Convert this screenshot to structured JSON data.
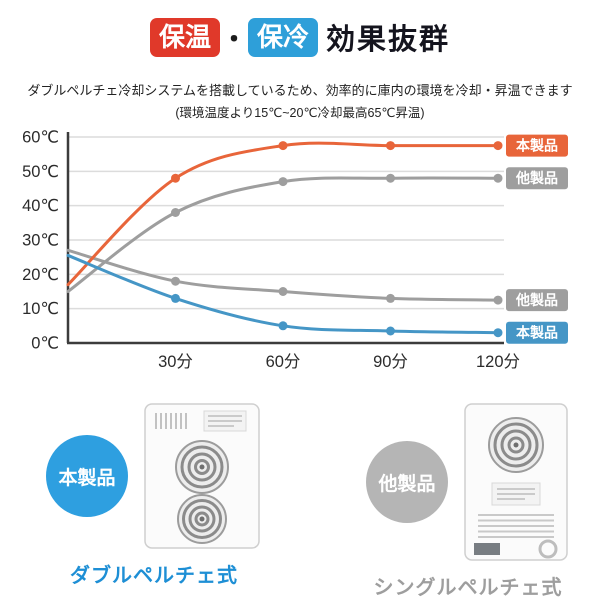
{
  "header": {
    "badge_hot": "保温",
    "separator": "・",
    "badge_cold": "保冷",
    "title_rest": "効果抜群",
    "subtitle_line1": "ダブルペルチェ冷却システムを搭載しているため、効率的に庫内の環境を冷却・昇温できます",
    "subtitle_line2": "(環境温度より15℃~20℃冷却最高65℃昇温)"
  },
  "chart_data": {
    "type": "line",
    "x": [
      0,
      30,
      60,
      90,
      120
    ],
    "xlim": [
      0,
      120
    ],
    "ylim": [
      0,
      60
    ],
    "x_ticks": [
      {
        "value": 30,
        "label": "30分"
      },
      {
        "value": 60,
        "label": "60分"
      },
      {
        "value": 90,
        "label": "90分"
      },
      {
        "value": 120,
        "label": "120分"
      }
    ],
    "y_ticks": [
      {
        "value": 0,
        "label": "0℃"
      },
      {
        "value": 10,
        "label": "10℃"
      },
      {
        "value": 20,
        "label": "20℃"
      },
      {
        "value": 30,
        "label": "30℃"
      },
      {
        "value": 40,
        "label": "40℃"
      },
      {
        "value": 50,
        "label": "50℃"
      },
      {
        "value": 60,
        "label": "60℃"
      }
    ],
    "grid": true,
    "legend_position": "right-edge-tags",
    "series": [
      {
        "name": "他製品(保温)",
        "tag": "他製品",
        "color": "#9e9e9e",
        "values": [
          15,
          38,
          47,
          48,
          48
        ]
      },
      {
        "name": "他製品(保冷)",
        "tag": "他製品",
        "color": "#9e9e9e",
        "values": [
          27,
          18,
          15,
          13,
          12.5
        ]
      },
      {
        "name": "本製品(保温)",
        "tag": "本製品",
        "color": "#e8653a",
        "values": [
          17,
          48,
          57.5,
          57.5,
          57.5
        ]
      },
      {
        "name": "本製品(保冷)",
        "tag": "本製品",
        "color": "#4596c6",
        "values": [
          25.5,
          13,
          5,
          3.5,
          3
        ]
      }
    ]
  },
  "bottom": {
    "ours": {
      "circle_label": "本製品",
      "caption": "ダブルペルチェ式",
      "accent": "#2e9fe0"
    },
    "theirs": {
      "circle_label": "他製品",
      "caption": "シングルペルチェ式",
      "accent": "#b5b5b5"
    }
  }
}
